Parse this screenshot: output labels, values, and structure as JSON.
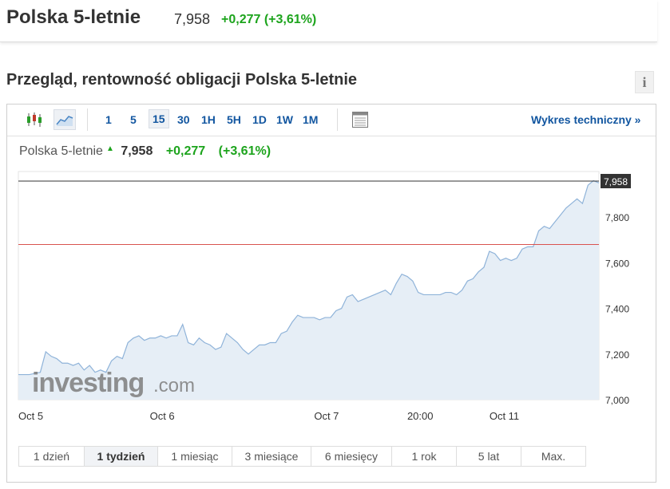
{
  "header": {
    "title": "Polska 5-letnie",
    "price": "7,958",
    "change": "+0,277 (+3,61%)"
  },
  "section_title": "Przegląd, rentowność obligacji Polska 5-letnie",
  "info_label": "i",
  "toolbar": {
    "intervals": [
      "1",
      "5",
      "15",
      "30",
      "1H",
      "5H",
      "1D",
      "1W",
      "1M"
    ],
    "selected_interval": "15",
    "technical_link": "Wykres techniczny »",
    "icons": [
      "candlestick-icon",
      "area-chart-icon",
      "table-view-icon"
    ]
  },
  "legend": {
    "name": "Polska 5-letnie",
    "price": "7,958",
    "change": "+0,277",
    "change_pct": "(+3,61%)"
  },
  "watermark": {
    "brand": "investing",
    "suffix": ".com"
  },
  "ranges": [
    "1 dzień",
    "1 tydzień",
    "1 miesiąc",
    "3 miesiące",
    "6 miesięcy",
    "1 rok",
    "5 lat",
    "Max."
  ],
  "selected_range": "1 tydzień",
  "colors": {
    "line": "#8fb3d9",
    "area": "#e6eef6",
    "prev_close": "#d9534f",
    "current": "#333333",
    "positive": "#1da41d",
    "link": "#1256a0"
  },
  "chart_data": {
    "type": "area",
    "title": "Polska 5-letnie",
    "ylim": [
      7.0,
      8.0
    ],
    "yticks": [
      7.0,
      7.2,
      7.4,
      7.6,
      7.8
    ],
    "ytick_labels": [
      "7,000",
      "7,200",
      "7,400",
      "7,600",
      "7,800"
    ],
    "xticks": [
      {
        "label": "Oct 5",
        "x": 0
      },
      {
        "label": "Oct 6",
        "x": 24
      },
      {
        "label": "Oct 7",
        "x": 54
      },
      {
        "label": "20:00",
        "x": 71
      },
      {
        "label": "Oct 11",
        "x": 86
      }
    ],
    "x_range": [
      0,
      104
    ],
    "current_value": 7.958,
    "current_label": "7,958",
    "reference_line": 7.68,
    "grid": false,
    "points": [
      [
        0,
        7.11
      ],
      [
        2,
        7.11
      ],
      [
        4,
        7.12
      ],
      [
        5,
        7.21
      ],
      [
        6,
        7.19
      ],
      [
        7,
        7.18
      ],
      [
        8,
        7.16
      ],
      [
        9,
        7.16
      ],
      [
        10,
        7.15
      ],
      [
        11,
        7.16
      ],
      [
        12,
        7.13
      ],
      [
        13,
        7.15
      ],
      [
        14,
        7.12
      ],
      [
        15,
        7.13
      ],
      [
        16,
        7.12
      ],
      [
        17,
        7.17
      ],
      [
        18,
        7.19
      ],
      [
        19,
        7.18
      ],
      [
        20,
        7.25
      ],
      [
        21,
        7.27
      ],
      [
        22,
        7.28
      ],
      [
        23,
        7.26
      ],
      [
        24,
        7.27
      ],
      [
        25,
        7.27
      ],
      [
        26,
        7.28
      ],
      [
        27,
        7.27
      ],
      [
        28,
        7.28
      ],
      [
        29,
        7.28
      ],
      [
        30,
        7.33
      ],
      [
        31,
        7.25
      ],
      [
        32,
        7.24
      ],
      [
        33,
        7.27
      ],
      [
        34,
        7.25
      ],
      [
        35,
        7.24
      ],
      [
        36,
        7.22
      ],
      [
        37,
        7.23
      ],
      [
        38,
        7.29
      ],
      [
        39,
        7.27
      ],
      [
        40,
        7.25
      ],
      [
        41,
        7.22
      ],
      [
        42,
        7.2
      ],
      [
        43,
        7.22
      ],
      [
        44,
        7.24
      ],
      [
        45,
        7.24
      ],
      [
        46,
        7.25
      ],
      [
        47,
        7.25
      ],
      [
        48,
        7.29
      ],
      [
        49,
        7.3
      ],
      [
        50,
        7.34
      ],
      [
        51,
        7.37
      ],
      [
        52,
        7.36
      ],
      [
        53,
        7.36
      ],
      [
        54,
        7.36
      ],
      [
        55,
        7.35
      ],
      [
        56,
        7.36
      ],
      [
        57,
        7.36
      ],
      [
        58,
        7.39
      ],
      [
        59,
        7.4
      ],
      [
        60,
        7.45
      ],
      [
        61,
        7.46
      ],
      [
        62,
        7.43
      ],
      [
        63,
        7.44
      ],
      [
        64,
        7.45
      ],
      [
        65,
        7.46
      ],
      [
        66,
        7.47
      ],
      [
        67,
        7.48
      ],
      [
        68,
        7.46
      ],
      [
        69,
        7.51
      ],
      [
        70,
        7.55
      ],
      [
        71,
        7.54
      ],
      [
        72,
        7.52
      ],
      [
        73,
        7.47
      ],
      [
        74,
        7.46
      ],
      [
        75,
        7.46
      ],
      [
        76,
        7.46
      ],
      [
        77,
        7.46
      ],
      [
        78,
        7.47
      ],
      [
        79,
        7.47
      ],
      [
        80,
        7.46
      ],
      [
        81,
        7.48
      ],
      [
        82,
        7.52
      ],
      [
        83,
        7.53
      ],
      [
        84,
        7.56
      ],
      [
        85,
        7.58
      ],
      [
        86,
        7.65
      ],
      [
        87,
        7.64
      ],
      [
        88,
        7.61
      ],
      [
        89,
        7.62
      ],
      [
        90,
        7.61
      ],
      [
        91,
        7.62
      ],
      [
        92,
        7.66
      ],
      [
        93,
        7.67
      ],
      [
        94,
        7.67
      ],
      [
        95,
        7.74
      ],
      [
        96,
        7.76
      ],
      [
        97,
        7.75
      ],
      [
        98,
        7.78
      ],
      [
        99,
        7.81
      ],
      [
        100,
        7.84
      ],
      [
        101,
        7.86
      ],
      [
        102,
        7.88
      ],
      [
        103,
        7.86
      ],
      [
        104,
        7.94
      ],
      [
        105,
        7.96
      ],
      [
        106,
        7.95
      ]
    ]
  }
}
